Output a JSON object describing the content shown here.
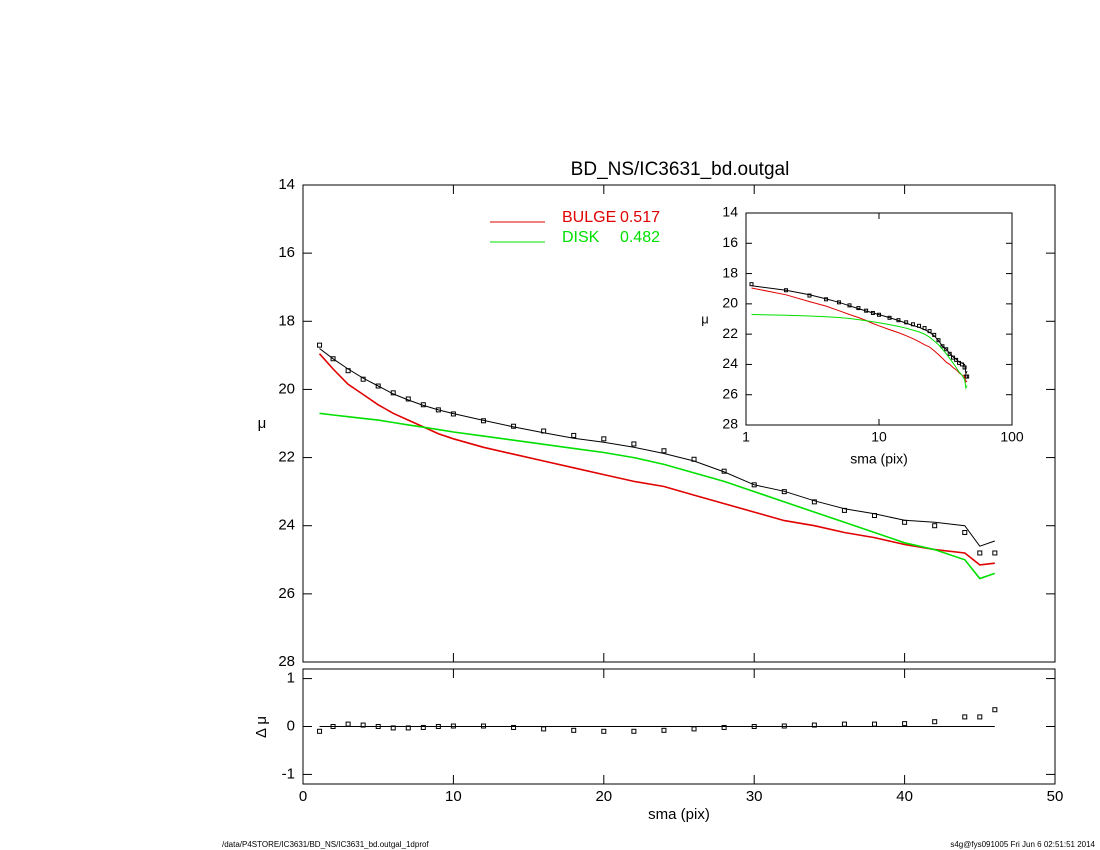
{
  "chart_data": [
    {
      "type": "line",
      "title": "BD_NS/IC3631_bd.outgal",
      "ylabel": "μ",
      "xlim": [
        0,
        50
      ],
      "xticks": [
        0,
        10,
        20,
        30,
        40,
        50
      ],
      "ylim": [
        28,
        14
      ],
      "yticks": [
        14,
        16,
        18,
        20,
        22,
        24,
        26,
        28
      ],
      "x": [
        1.1,
        2,
        3,
        4,
        5,
        6,
        7,
        8,
        9,
        10,
        12,
        14,
        16,
        18,
        20,
        22,
        24,
        26,
        28,
        30,
        32,
        34,
        36,
        38,
        40,
        42,
        44,
        45,
        46
      ],
      "series": [
        {
          "style": "markers",
          "color": "#000000",
          "values": [
            18.7,
            19.1,
            19.45,
            19.7,
            19.9,
            20.1,
            20.28,
            20.45,
            20.6,
            20.72,
            20.92,
            21.08,
            21.22,
            21.35,
            21.45,
            21.6,
            21.8,
            22.05,
            22.4,
            22.8,
            23.0,
            23.3,
            23.55,
            23.7,
            23.9,
            24.0,
            24.2,
            24.8,
            24.8
          ]
        },
        {
          "color": "#000000",
          "values": [
            18.8,
            19.1,
            19.4,
            19.67,
            19.9,
            20.13,
            20.31,
            20.47,
            20.6,
            20.71,
            20.91,
            21.1,
            21.27,
            21.43,
            21.55,
            21.7,
            21.88,
            22.1,
            22.42,
            22.8,
            22.99,
            23.27,
            23.5,
            23.65,
            23.84,
            23.9,
            24.0,
            24.6,
            24.45
          ]
        },
        {
          "name": "BULGE",
          "fraction": 0.517,
          "color": "#e00000",
          "values": [
            18.95,
            19.4,
            19.85,
            20.15,
            20.45,
            20.7,
            20.9,
            21.1,
            21.3,
            21.45,
            21.7,
            21.9,
            22.1,
            22.3,
            22.5,
            22.7,
            22.85,
            23.1,
            23.35,
            23.6,
            23.85,
            24.0,
            24.2,
            24.35,
            24.55,
            24.7,
            24.8,
            25.15,
            25.1
          ]
        },
        {
          "name": "DISK",
          "fraction": 0.482,
          "color": "#00e000",
          "values": [
            20.7,
            20.75,
            20.8,
            20.85,
            20.9,
            20.97,
            21.04,
            21.11,
            21.18,
            21.25,
            21.37,
            21.49,
            21.61,
            21.73,
            21.85,
            22.0,
            22.2,
            22.45,
            22.7,
            23.0,
            23.3,
            23.6,
            23.9,
            24.2,
            24.5,
            24.7,
            25.0,
            25.55,
            25.4
          ]
        }
      ]
    },
    {
      "type": "scatter",
      "ylabel": "Δ μ",
      "xlabel": "sma (pix)",
      "xlim": [
        0,
        50
      ],
      "xticks": [
        0,
        10,
        20,
        30,
        40,
        50
      ],
      "ylim": [
        -1.2,
        1.2
      ],
      "yticks": [
        -1,
        0,
        1
      ],
      "reference": 0,
      "values": [
        -0.1,
        0.0,
        0.05,
        0.03,
        0.0,
        -0.03,
        -0.03,
        -0.02,
        0.0,
        0.01,
        0.01,
        -0.02,
        -0.05,
        -0.08,
        -0.1,
        -0.1,
        -0.08,
        -0.05,
        -0.02,
        0.0,
        0.01,
        0.03,
        0.05,
        0.05,
        0.06,
        0.1,
        0.2,
        0.2,
        0.35
      ]
    },
    {
      "type": "line",
      "xscale": "log",
      "ylabel": "μ",
      "xlabel": "sma (pix)",
      "xlim": [
        1,
        100
      ],
      "xticks": [
        1,
        10,
        100
      ],
      "ylim": [
        28,
        14
      ],
      "yticks": [
        14,
        16,
        18,
        20,
        22,
        24,
        26,
        28
      ]
    }
  ],
  "footer": {
    "left": "/data/P4STORE/IC3631/BD_NS/IC3631_bd.outgal_1dprof",
    "right": "s4g@fys091005  Fri Jun  6 02:51:51 2014"
  }
}
